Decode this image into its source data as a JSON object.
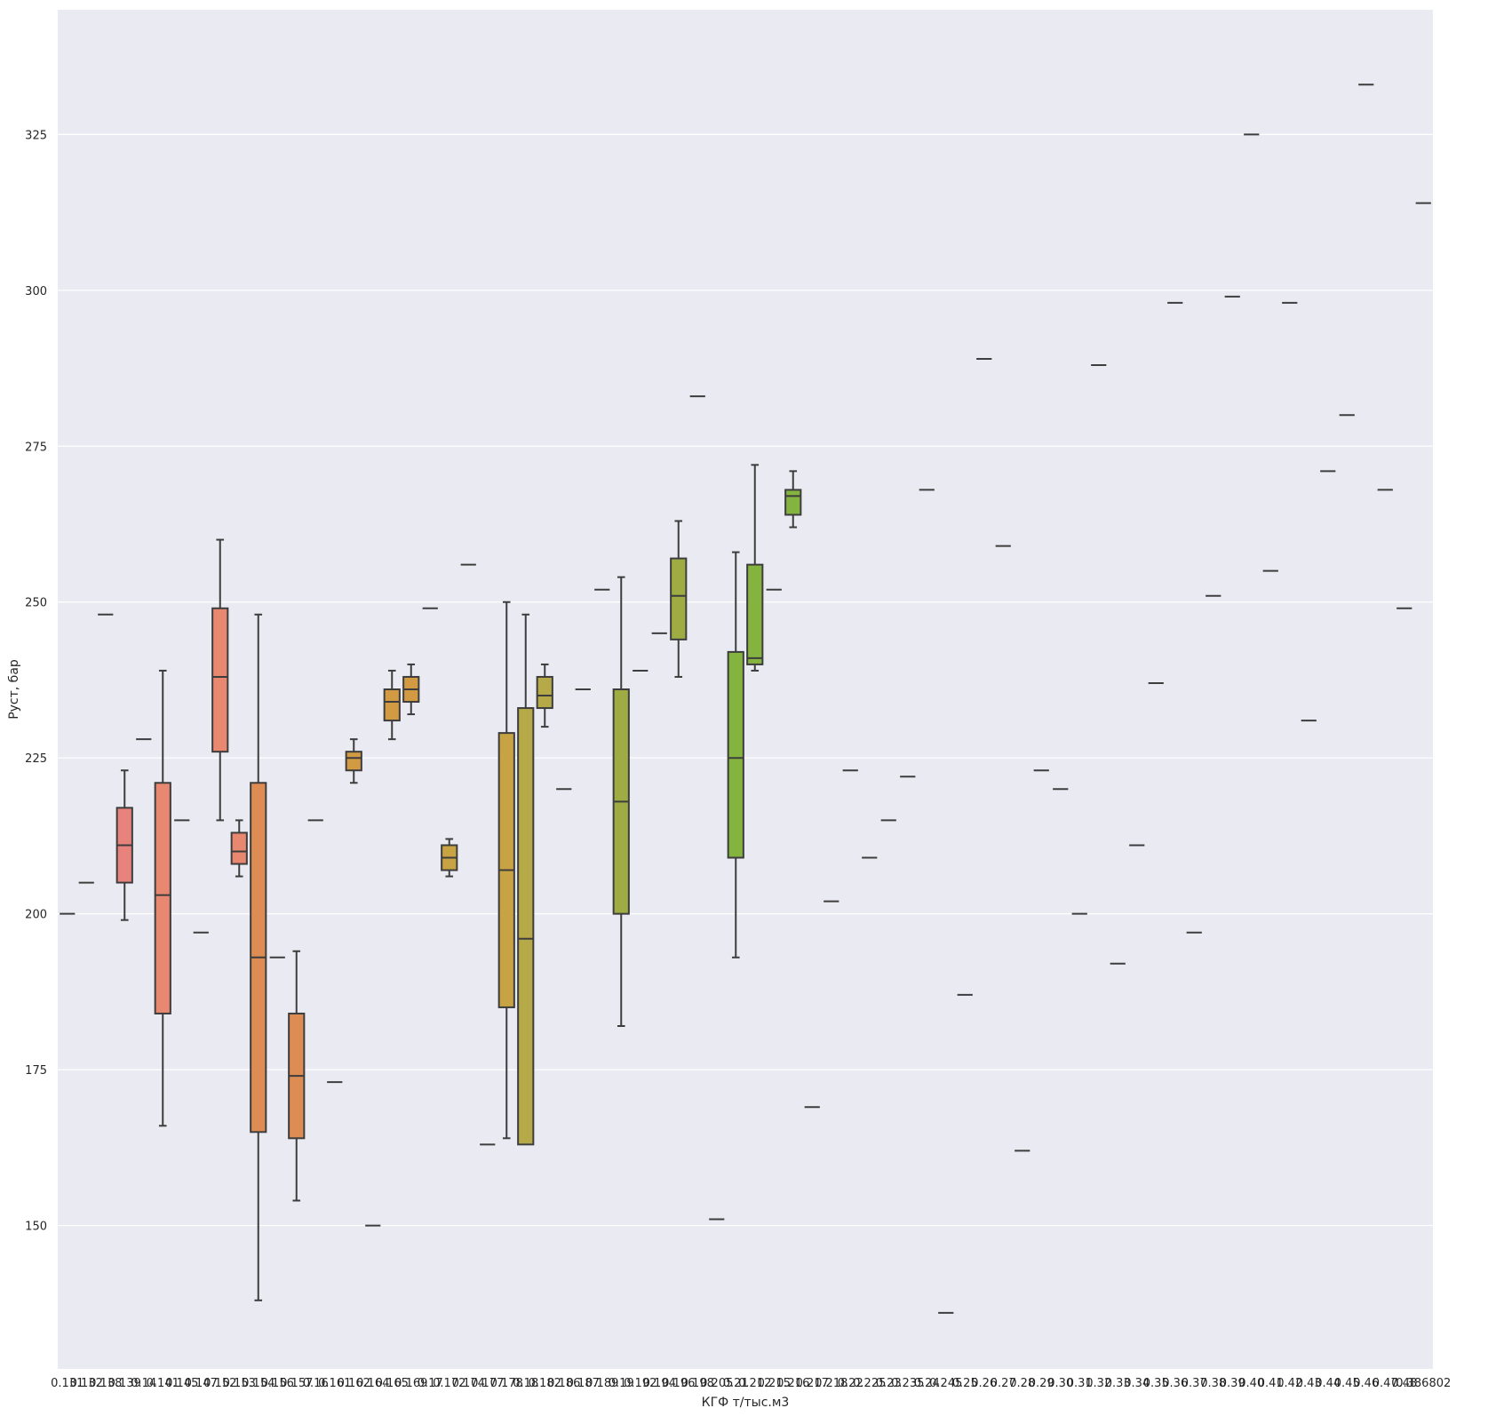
{
  "chart_data": {
    "type": "box",
    "xlabel": "КГФ т/тыс.м3",
    "ylabel": "Руст, бар",
    "ylim": [
      127,
      345
    ],
    "yticks": [
      150,
      175,
      200,
      225,
      250,
      275,
      300,
      325
    ],
    "grid": true,
    "categories": [
      "0.131",
      "0.132",
      "0.138",
      "0.139",
      "0.14",
      "0.141",
      "0.145",
      "0.147",
      "0.152",
      "0.153",
      "0.154",
      "0.156",
      "0.157",
      "0.16",
      "0.161",
      "0.162",
      "0.164",
      "0.165",
      "0.169",
      "0.17",
      "0.172",
      "0.174",
      "0.177",
      "0.178",
      "0.18",
      "0.182",
      "0.186",
      "0.187",
      "0.189",
      "0.19",
      "0.192",
      "0.194",
      "0.196",
      "0.198",
      "0.205",
      "0.21",
      "0.212",
      "0.215",
      "0.216",
      "0.217",
      "0.218",
      "0.22",
      "0.225",
      "0.23",
      "0.235",
      "0.24",
      "0.245",
      "0.25",
      "0.26",
      "0.27",
      "0.28",
      "0.29",
      "0.30",
      "0.31",
      "0.32",
      "0.33",
      "0.34",
      "0.35",
      "0.36",
      "0.37",
      "0.38",
      "0.39",
      "0.40",
      "0.41",
      "0.42",
      "0.43",
      "0.44",
      "0.45",
      "0.46",
      "0.47",
      "0.48",
      "0.386802"
    ],
    "boxes": [
      {
        "min": 200,
        "q1": 200,
        "median": 200,
        "q3": 200,
        "max": 200
      },
      {
        "min": 205,
        "q1": 205,
        "median": 205,
        "q3": 205,
        "max": 205
      },
      {
        "min": 248,
        "q1": 248,
        "median": 248,
        "q3": 248,
        "max": 248
      },
      {
        "min": 199,
        "q1": 205,
        "median": 211,
        "q3": 217,
        "max": 223
      },
      {
        "min": 228,
        "q1": 228,
        "median": 228,
        "q3": 228,
        "max": 228
      },
      {
        "min": 166,
        "q1": 184,
        "median": 203,
        "q3": 221,
        "max": 239
      },
      {
        "min": 215,
        "q1": 215,
        "median": 215,
        "q3": 215,
        "max": 215
      },
      {
        "min": 197,
        "q1": 197,
        "median": 197,
        "q3": 197,
        "max": 197
      },
      {
        "min": 215,
        "q1": 226,
        "median": 238,
        "q3": 249,
        "max": 260
      },
      {
        "min": 206,
        "q1": 208,
        "median": 210,
        "q3": 213,
        "max": 215
      },
      {
        "min": 138,
        "q1": 165,
        "median": 193,
        "q3": 221,
        "max": 248
      },
      {
        "min": 193,
        "q1": 193,
        "median": 193,
        "q3": 193,
        "max": 193
      },
      {
        "min": 154,
        "q1": 164,
        "median": 174,
        "q3": 184,
        "max": 194
      },
      {
        "min": 215,
        "q1": 215,
        "median": 215,
        "q3": 215,
        "max": 215
      },
      {
        "min": 173,
        "q1": 173,
        "median": 173,
        "q3": 173,
        "max": 173
      },
      {
        "min": 221,
        "q1": 223,
        "median": 225,
        "q3": 226,
        "max": 228
      },
      {
        "min": 150,
        "q1": 150,
        "median": 150,
        "q3": 150,
        "max": 150
      },
      {
        "min": 228,
        "q1": 231,
        "median": 234,
        "q3": 236,
        "max": 239
      },
      {
        "min": 232,
        "q1": 234,
        "median": 236,
        "q3": 238,
        "max": 240
      },
      {
        "min": 249,
        "q1": 249,
        "median": 249,
        "q3": 249,
        "max": 249
      },
      {
        "min": 206,
        "q1": 207,
        "median": 209,
        "q3": 211,
        "max": 212
      },
      {
        "min": 256,
        "q1": 256,
        "median": 256,
        "q3": 256,
        "max": 256
      },
      {
        "min": 163,
        "q1": 163,
        "median": 163,
        "q3": 163,
        "max": 163
      },
      {
        "min": 164,
        "q1": 185,
        "median": 207,
        "q3": 229,
        "max": 250
      },
      {
        "min": 163,
        "q1": 163,
        "median": 196,
        "q3": 233,
        "max": 248
      },
      {
        "min": 230,
        "q1": 233,
        "median": 235,
        "q3": 238,
        "max": 240
      },
      {
        "min": 220,
        "q1": 220,
        "median": 220,
        "q3": 220,
        "max": 220
      },
      {
        "min": 236,
        "q1": 236,
        "median": 236,
        "q3": 236,
        "max": 236
      },
      {
        "min": 252,
        "q1": 252,
        "median": 252,
        "q3": 252,
        "max": 252
      },
      {
        "min": 182,
        "q1": 200,
        "median": 218,
        "q3": 236,
        "max": 254
      },
      {
        "min": 239,
        "q1": 239,
        "median": 239,
        "q3": 239,
        "max": 239
      },
      {
        "min": 245,
        "q1": 245,
        "median": 245,
        "q3": 245,
        "max": 245
      },
      {
        "min": 238,
        "q1": 244,
        "median": 251,
        "q3": 257,
        "max": 263
      },
      {
        "min": 283,
        "q1": 283,
        "median": 283,
        "q3": 283,
        "max": 283
      },
      {
        "min": 151,
        "q1": 151,
        "median": 151,
        "q3": 151,
        "max": 151
      },
      {
        "min": 193,
        "q1": 209,
        "median": 225,
        "q3": 242,
        "max": 258
      },
      {
        "min": 239,
        "q1": 240,
        "median": 241,
        "q3": 256,
        "max": 272
      },
      {
        "min": 252,
        "q1": 252,
        "median": 252,
        "q3": 252,
        "max": 252
      },
      {
        "min": 262,
        "q1": 264,
        "median": 267,
        "q3": 268,
        "max": 271
      },
      {
        "min": 169,
        "q1": 169,
        "median": 169,
        "q3": 169,
        "max": 169
      },
      {
        "min": 202,
        "q1": 202,
        "median": 202,
        "q3": 202,
        "max": 202
      },
      {
        "min": 223,
        "q1": 223,
        "median": 223,
        "q3": 223,
        "max": 223
      },
      {
        "min": 209,
        "q1": 209,
        "median": 209,
        "q3": 209,
        "max": 209
      },
      {
        "min": 215,
        "q1": 215,
        "median": 215,
        "q3": 215,
        "max": 215
      },
      {
        "min": 222,
        "q1": 222,
        "median": 222,
        "q3": 222,
        "max": 222
      },
      {
        "min": 268,
        "q1": 268,
        "median": 268,
        "q3": 268,
        "max": 268
      },
      {
        "min": 136,
        "q1": 136,
        "median": 136,
        "q3": 136,
        "max": 136
      },
      {
        "min": 187,
        "q1": 187,
        "median": 187,
        "q3": 187,
        "max": 187
      },
      {
        "min": 289,
        "q1": 289,
        "median": 289,
        "q3": 289,
        "max": 289
      },
      {
        "min": 259,
        "q1": 259,
        "median": 259,
        "q3": 259,
        "max": 259
      },
      {
        "min": 162,
        "q1": 162,
        "median": 162,
        "q3": 162,
        "max": 162
      },
      {
        "min": 223,
        "q1": 223,
        "median": 223,
        "q3": 223,
        "max": 223
      },
      {
        "min": 220,
        "q1": 220,
        "median": 220,
        "q3": 220,
        "max": 220
      },
      {
        "min": 200,
        "q1": 200,
        "median": 200,
        "q3": 200,
        "max": 200
      },
      {
        "min": 288,
        "q1": 288,
        "median": 288,
        "q3": 288,
        "max": 288
      },
      {
        "min": 192,
        "q1": 192,
        "median": 192,
        "q3": 192,
        "max": 192
      },
      {
        "min": 211,
        "q1": 211,
        "median": 211,
        "q3": 211,
        "max": 211
      },
      {
        "min": 237,
        "q1": 237,
        "median": 237,
        "q3": 237,
        "max": 237
      },
      {
        "min": 298,
        "q1": 298,
        "median": 298,
        "q3": 298,
        "max": 298
      },
      {
        "min": 197,
        "q1": 197,
        "median": 197,
        "q3": 197,
        "max": 197
      },
      {
        "min": 251,
        "q1": 251,
        "median": 251,
        "q3": 251,
        "max": 251
      },
      {
        "min": 299,
        "q1": 299,
        "median": 299,
        "q3": 299,
        "max": 299
      },
      {
        "min": 325,
        "q1": 325,
        "median": 325,
        "q3": 325,
        "max": 325
      },
      {
        "min": 255,
        "q1": 255,
        "median": 255,
        "q3": 255,
        "max": 255
      },
      {
        "min": 298,
        "q1": 298,
        "median": 298,
        "q3": 298,
        "max": 298
      },
      {
        "min": 231,
        "q1": 231,
        "median": 231,
        "q3": 231,
        "max": 231
      },
      {
        "min": 271,
        "q1": 271,
        "median": 271,
        "q3": 271,
        "max": 271
      },
      {
        "min": 280,
        "q1": 280,
        "median": 280,
        "q3": 280,
        "max": 280
      },
      {
        "min": 333,
        "q1": 333,
        "median": 333,
        "q3": 333,
        "max": 333
      },
      {
        "min": 268,
        "q1": 268,
        "median": 268,
        "q3": 268,
        "max": 268
      },
      {
        "min": 249,
        "q1": 249,
        "median": 249,
        "q3": 249,
        "max": 249
      },
      {
        "min": 314,
        "q1": 314,
        "median": 314,
        "q3": 314,
        "max": 314
      }
    ],
    "colors": [
      "#e8827d",
      "#e88870",
      "#dd8d53",
      "#d29a43",
      "#c7a344",
      "#b5a948",
      "#9fac44",
      "#85b33f",
      "#6bb740",
      "#58b54d",
      "#4fb56f",
      "#44b28f",
      "#3eb09e",
      "#3ca9a9",
      "#3ea4b0"
    ]
  }
}
